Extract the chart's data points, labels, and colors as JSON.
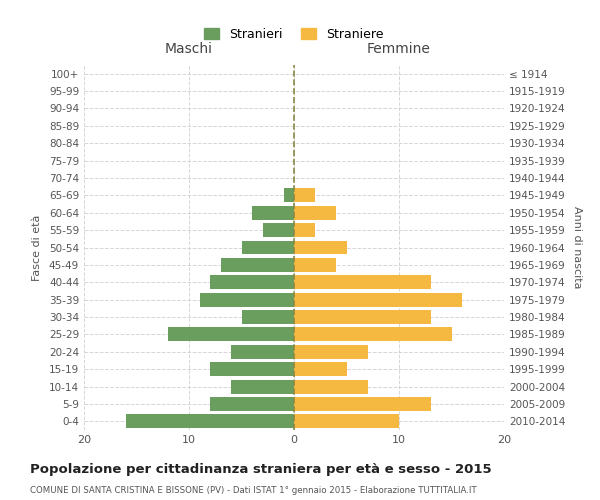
{
  "age_groups": [
    "0-4",
    "5-9",
    "10-14",
    "15-19",
    "20-24",
    "25-29",
    "30-34",
    "35-39",
    "40-44",
    "45-49",
    "50-54",
    "55-59",
    "60-64",
    "65-69",
    "70-74",
    "75-79",
    "80-84",
    "85-89",
    "90-94",
    "95-99",
    "100+"
  ],
  "birth_years": [
    "2010-2014",
    "2005-2009",
    "2000-2004",
    "1995-1999",
    "1990-1994",
    "1985-1989",
    "1980-1984",
    "1975-1979",
    "1970-1974",
    "1965-1969",
    "1960-1964",
    "1955-1959",
    "1950-1954",
    "1945-1949",
    "1940-1944",
    "1935-1939",
    "1930-1934",
    "1925-1929",
    "1920-1924",
    "1915-1919",
    "≤ 1914"
  ],
  "maschi": [
    16,
    8,
    6,
    8,
    6,
    12,
    5,
    9,
    8,
    7,
    5,
    3,
    4,
    1,
    0,
    0,
    0,
    0,
    0,
    0,
    0
  ],
  "femmine": [
    10,
    13,
    7,
    5,
    7,
    15,
    13,
    16,
    13,
    4,
    5,
    2,
    4,
    2,
    0,
    0,
    0,
    0,
    0,
    0,
    0
  ],
  "color_maschi": "#6a9e5e",
  "color_femmine": "#f5b942",
  "title": "Popolazione per cittadinanza straniera per età e sesso - 2015",
  "subtitle": "COMUNE DI SANTA CRISTINA E BISSONE (PV) - Dati ISTAT 1° gennaio 2015 - Elaborazione TUTTITALIA.IT",
  "xlabel_left": "Maschi",
  "xlabel_right": "Femmine",
  "ylabel_left": "Fasce di età",
  "ylabel_right": "Anni di nascita",
  "legend_maschi": "Stranieri",
  "legend_femmine": "Straniere",
  "xlim": 20,
  "bg_color": "#ffffff",
  "grid_color": "#cccccc",
  "bar_height": 0.8,
  "dashed_line_color": "#888844"
}
